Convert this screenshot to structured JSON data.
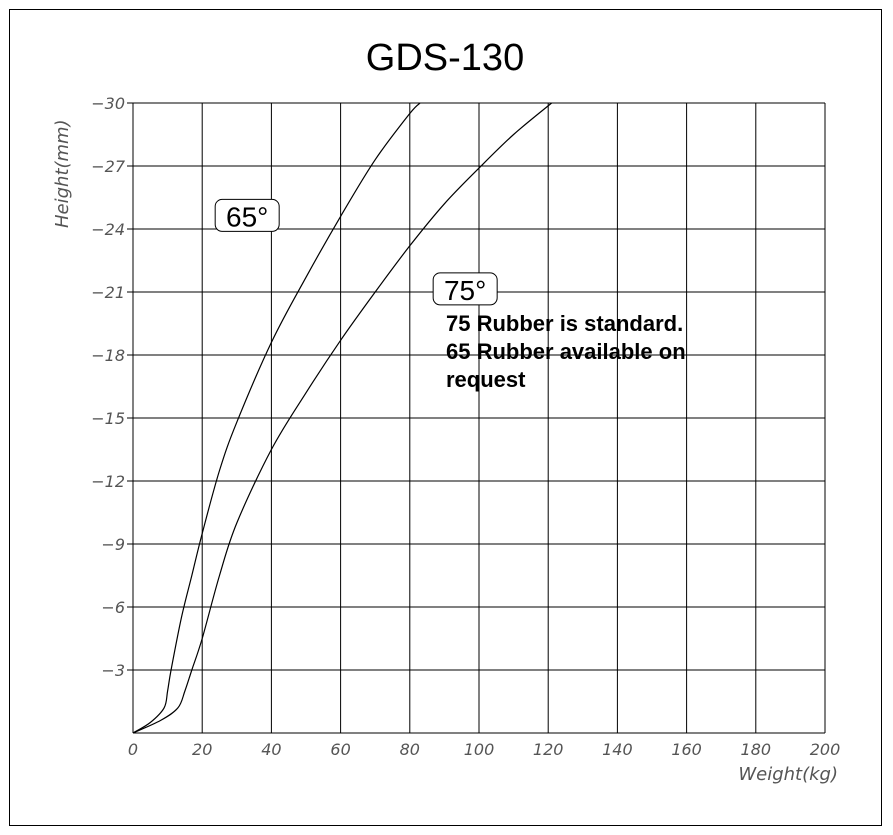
{
  "chart_data": {
    "type": "line",
    "title": "GDS-130",
    "xlabel": "Weight(kg)",
    "ylabel": "Height(mm)",
    "xlim": [
      0,
      200
    ],
    "ylim": [
      0,
      -30
    ],
    "x_ticks": [
      "0",
      "20",
      "40",
      "60",
      "80",
      "100",
      "120",
      "140",
      "160",
      "180",
      "200"
    ],
    "y_ticks": [
      "-30",
      "-27",
      "-24",
      "-21",
      "-18",
      "-15",
      "-12",
      "-9",
      "-6",
      "-3"
    ],
    "grid": true,
    "series": [
      {
        "name": "65°",
        "x": [
          0,
          5,
          9,
          10,
          11,
          14,
          17,
          20,
          25,
          30,
          40,
          50,
          60,
          70,
          80,
          83
        ],
        "y": [
          0,
          -0.5,
          -1.2,
          -2,
          -3,
          -5.5,
          -7.5,
          -9.5,
          -12.5,
          -14.8,
          -18.6,
          -21.7,
          -24.6,
          -27.3,
          -29.5,
          -30
        ]
      },
      {
        "name": "75°",
        "x": [
          0,
          8,
          13,
          15,
          17,
          20,
          25,
          30,
          40,
          50,
          60,
          70,
          80,
          90,
          100,
          110,
          121
        ],
        "y": [
          0,
          -0.6,
          -1.2,
          -2,
          -3,
          -4.5,
          -7.5,
          -10,
          -13.5,
          -16.2,
          -18.7,
          -21,
          -23.2,
          -25.2,
          -26.9,
          -28.5,
          -30
        ]
      }
    ],
    "annotation": {
      "lines": [
        "75 Rubber is standard.",
        "65 Rubber available on",
        "request"
      ]
    }
  }
}
